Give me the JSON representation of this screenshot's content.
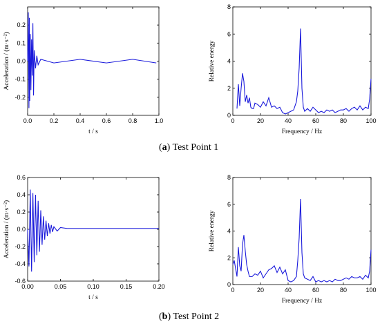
{
  "captions": {
    "a": {
      "letter": "a",
      "text": " Test Point 1"
    },
    "b": {
      "letter": "b",
      "text": " Test Point 2"
    }
  },
  "chart_data": [
    {
      "id": "a-time",
      "type": "line",
      "xlabel": "t / s",
      "ylabel": "Acceleration / (m·s⁻²)",
      "xlim": [
        0,
        1.0
      ],
      "ylim": [
        -0.3,
        0.3
      ],
      "xticks": [
        "0.0",
        "0.2",
        "0.4",
        "0.6",
        "0.8",
        "1.0"
      ],
      "yticks": [
        "-0.2",
        "-0.1",
        "0.0",
        "0.1",
        "0.2"
      ],
      "ytick_values": [
        -0.2,
        -0.1,
        0.0,
        0.1,
        0.2
      ],
      "xtick_values": [
        0,
        0.2,
        0.4,
        0.6,
        0.8,
        1.0
      ],
      "color": "#1a1adb",
      "series": [
        {
          "x": [
            0,
            0.005,
            0.01,
            0.013,
            0.016,
            0.02,
            0.025,
            0.03,
            0.035,
            0.04,
            0.045,
            0.05,
            0.06,
            0.07,
            0.08,
            0.1,
            0.2,
            0.4,
            0.6,
            0.8,
            0.98
          ],
          "y": [
            0.0,
            0.27,
            -0.26,
            0.24,
            -0.22,
            0.15,
            -0.16,
            0.12,
            -0.08,
            0.21,
            -0.19,
            0.06,
            -0.04,
            0.03,
            -0.02,
            0.01,
            -0.01,
            0.01,
            -0.01,
            0.01,
            -0.01
          ]
        }
      ]
    },
    {
      "id": "a-freq",
      "type": "line",
      "xlabel": "Frequency / Hz",
      "ylabel": "Relative energy",
      "xlim": [
        0,
        100
      ],
      "ylim": [
        0,
        8
      ],
      "xticks": [
        "0",
        "20",
        "40",
        "60",
        "80",
        "100"
      ],
      "yticks": [
        "0",
        "2",
        "4",
        "6",
        "8"
      ],
      "ytick_values": [
        0,
        2,
        4,
        6,
        8
      ],
      "xtick_values": [
        0,
        20,
        40,
        60,
        80,
        100
      ],
      "color": "#1a1adb",
      "series": [
        {
          "x": [
            3,
            4,
            5,
            6,
            7,
            8,
            9,
            10,
            11,
            12,
            13,
            14,
            15,
            16,
            18,
            20,
            22,
            24,
            26,
            28,
            30,
            32,
            34,
            36,
            38,
            40,
            42,
            44,
            46,
            47,
            48,
            49,
            50,
            51,
            52,
            54,
            56,
            58,
            60,
            62,
            64,
            66,
            68,
            70,
            72,
            74,
            76,
            78,
            80,
            82,
            84,
            86,
            88,
            90,
            92,
            94,
            96,
            98,
            99,
            100
          ],
          "y": [
            0.5,
            2.3,
            0.7,
            2.0,
            3.1,
            2.5,
            1.0,
            1.5,
            0.9,
            1.3,
            0.6,
            0.5,
            0.5,
            0.9,
            0.8,
            0.6,
            1.0,
            0.7,
            1.3,
            0.6,
            0.7,
            0.5,
            0.6,
            0.2,
            0.1,
            0.2,
            0.3,
            0.4,
            1.0,
            1.8,
            3.5,
            6.4,
            2.0,
            0.6,
            0.3,
            0.5,
            0.3,
            0.6,
            0.4,
            0.2,
            0.3,
            0.2,
            0.4,
            0.3,
            0.4,
            0.2,
            0.3,
            0.4,
            0.4,
            0.5,
            0.3,
            0.5,
            0.6,
            0.4,
            0.7,
            0.4,
            0.6,
            0.5,
            1.2,
            2.7
          ]
        }
      ]
    },
    {
      "id": "b-time",
      "type": "line",
      "xlabel": "t / s",
      "ylabel": "Acceleration / (m·s⁻²)",
      "xlim": [
        0,
        0.2
      ],
      "ylim": [
        -0.6,
        0.6
      ],
      "xticks": [
        "0.00",
        "0.05",
        "0.10",
        "0.15",
        "0.20"
      ],
      "yticks": [
        "-0.6",
        "-0.4",
        "-0.2",
        "0.0",
        "0.2",
        "0.4",
        "0.6"
      ],
      "ytick_values": [
        -0.6,
        -0.4,
        -0.2,
        0.0,
        0.2,
        0.4,
        0.6
      ],
      "xtick_values": [
        0,
        0.05,
        0.1,
        0.15,
        0.2
      ],
      "color": "#1a1adb",
      "series": [
        {
          "x": [
            0,
            0.002,
            0.004,
            0.006,
            0.008,
            0.01,
            0.012,
            0.014,
            0.016,
            0.018,
            0.02,
            0.022,
            0.024,
            0.026,
            0.028,
            0.03,
            0.032,
            0.034,
            0.036,
            0.038,
            0.04,
            0.045,
            0.05,
            0.06,
            0.1,
            0.15,
            0.2
          ],
          "y": [
            0.0,
            -0.43,
            0.46,
            -0.49,
            0.42,
            -0.38,
            0.4,
            -0.3,
            0.33,
            -0.26,
            0.22,
            -0.18,
            0.15,
            -0.12,
            0.1,
            -0.08,
            0.07,
            -0.05,
            0.05,
            -0.03,
            0.03,
            -0.02,
            0.02,
            0.01,
            0.01,
            0.01,
            0.01
          ]
        }
      ]
    },
    {
      "id": "b-freq",
      "type": "line",
      "xlabel": "Frequency / Hz",
      "ylabel": "Relative energy",
      "xlim": [
        0,
        100
      ],
      "ylim": [
        0,
        8
      ],
      "xticks": [
        "0",
        "20",
        "40",
        "60",
        "80",
        "100"
      ],
      "yticks": [
        "0",
        "2",
        "4",
        "6",
        "8"
      ],
      "ytick_values": [
        0,
        2,
        4,
        6,
        8
      ],
      "xtick_values": [
        0,
        20,
        40,
        60,
        80,
        100
      ],
      "color": "#1a1adb",
      "series": [
        {
          "x": [
            0,
            1,
            2,
            3,
            4,
            5,
            6,
            7,
            8,
            9,
            10,
            11,
            12,
            14,
            16,
            18,
            20,
            22,
            24,
            26,
            28,
            30,
            32,
            34,
            36,
            38,
            40,
            42,
            44,
            46,
            47,
            48,
            49,
            50,
            51,
            52,
            54,
            56,
            58,
            60,
            62,
            64,
            66,
            68,
            70,
            72,
            74,
            76,
            78,
            80,
            82,
            84,
            86,
            88,
            90,
            92,
            94,
            96,
            98,
            99,
            100
          ],
          "y": [
            1.5,
            1.8,
            1.2,
            0.6,
            2.8,
            1.4,
            1.0,
            3.0,
            3.7,
            2.5,
            1.5,
            1.0,
            0.6,
            0.6,
            0.8,
            0.7,
            1.0,
            0.5,
            0.8,
            1.1,
            1.2,
            1.4,
            0.9,
            1.3,
            0.8,
            1.1,
            0.3,
            0.2,
            0.3,
            0.6,
            1.8,
            3.5,
            6.4,
            2.4,
            0.8,
            0.5,
            0.4,
            0.3,
            0.6,
            0.2,
            0.3,
            0.2,
            0.3,
            0.2,
            0.3,
            0.2,
            0.4,
            0.3,
            0.3,
            0.4,
            0.5,
            0.4,
            0.6,
            0.5,
            0.5,
            0.6,
            0.4,
            0.7,
            0.5,
            1.0,
            2.6
          ]
        }
      ]
    }
  ]
}
